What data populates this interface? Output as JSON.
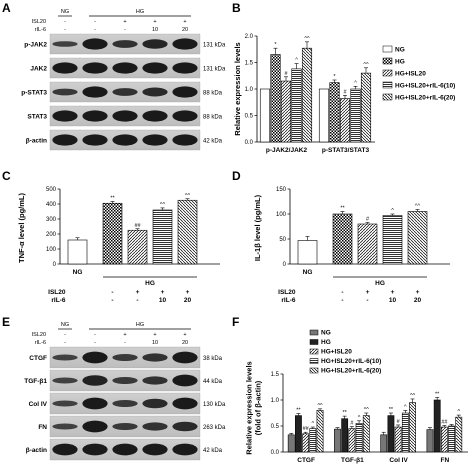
{
  "panels": {
    "A": {
      "label": "A",
      "group_ng": "NG",
      "group_hg": "HG",
      "rows": [
        {
          "name": "ISL20",
          "values": [
            "-",
            "-",
            "+",
            "+",
            "+"
          ]
        },
        {
          "name": "rIL-6",
          "values": [
            "-",
            "-",
            "-",
            "10",
            "20"
          ]
        }
      ],
      "bands": [
        {
          "protein": "p-JAK2",
          "kda": "131 kDa"
        },
        {
          "protein": "JAK2",
          "kda": "131 kDa"
        },
        {
          "protein": "p-STAT3",
          "kda": "88 kDa"
        },
        {
          "protein": "STAT3",
          "kda": "88 kDa"
        },
        {
          "protein": "β-actin",
          "kda": "42 kDa"
        }
      ]
    },
    "E": {
      "label": "E",
      "group_ng": "NG",
      "group_hg": "HG",
      "rows": [
        {
          "name": "ISL20",
          "values": [
            "-",
            "-",
            "+",
            "+",
            "+"
          ]
        },
        {
          "name": "rIL-6",
          "values": [
            "-",
            "-",
            "-",
            "10",
            "20"
          ]
        }
      ],
      "bands": [
        {
          "protein": "CTGF",
          "kda": "38 kDa"
        },
        {
          "protein": "TGF-β1",
          "kda": "44 kDa"
        },
        {
          "protein": "Col IV",
          "kda": "130 kDa"
        },
        {
          "protein": "FN",
          "kda": "263 kDa"
        },
        {
          "protein": "β-actin",
          "kda": "42 kDa"
        }
      ]
    },
    "C_D_bottom": {
      "group_ng": "NG",
      "group_hg": "HG",
      "rows": [
        {
          "name": "ISL20",
          "values": [
            "-",
            "+",
            "+",
            "+"
          ]
        },
        {
          "name": "rIL-6",
          "values": [
            "-",
            "-",
            "10",
            "20"
          ]
        }
      ]
    }
  },
  "legend_items": [
    "NG",
    "HG",
    "HG+ISL20",
    "HG+ISL20+rIL-6(10)",
    "HG+ISL20+rIL-6(20)"
  ],
  "legend_items_F": [
    "NG",
    "HG",
    "HG+ISL20",
    "HG+ISL20+rIL-6(10)",
    "HG+ISL20+rIL-6(20)"
  ],
  "chart_data": [
    {
      "panel": "B",
      "type": "bar",
      "ylabel": "Relative expression levels",
      "ylim": [
        0,
        2.0
      ],
      "yticks": [
        "0.0",
        "0.5",
        "1.0",
        "1.5",
        "2.0"
      ],
      "categories": [
        "p-JAK2/JAK2",
        "p-STAT3/STAT3"
      ],
      "series": [
        {
          "name": "NG",
          "values": [
            1.0,
            1.0
          ],
          "err": [
            0,
            0
          ]
        },
        {
          "name": "HG",
          "values": [
            1.65,
            1.12
          ],
          "err": [
            0.12,
            0.05
          ]
        },
        {
          "name": "HG+ISL20",
          "values": [
            1.15,
            0.82
          ],
          "err": [
            0.08,
            0.06
          ]
        },
        {
          "name": "HG+ISL20+rIL-6(10)",
          "values": [
            1.38,
            1.0
          ],
          "err": [
            0.1,
            0.05
          ]
        },
        {
          "name": "HG+ISL20+rIL-6(20)",
          "values": [
            1.77,
            1.3
          ],
          "err": [
            0.12,
            0.1
          ]
        }
      ],
      "annotations": [
        [
          "",
          "*",
          "#",
          "^",
          "^^"
        ],
        [
          "",
          "*",
          "#",
          "^",
          "^^"
        ]
      ]
    },
    {
      "panel": "C",
      "type": "bar",
      "ylabel": "TNF-α level (pg/mL)",
      "ylim": [
        0,
        500
      ],
      "yticks": [
        "0",
        "100",
        "200",
        "300",
        "400",
        "500"
      ],
      "categories": [
        "NG",
        "HG",
        "HG+ISL20",
        "HG+ISL20+rIL-6(10)",
        "HG+ISL20+rIL-6(20)"
      ],
      "values": [
        160,
        405,
        225,
        360,
        425
      ],
      "err": [
        15,
        12,
        10,
        14,
        10
      ],
      "annotations": [
        "",
        "**",
        "##",
        "^^",
        "^^"
      ]
    },
    {
      "panel": "D",
      "type": "bar",
      "ylabel": "IL-1β level (pg/mL)",
      "ylim": [
        0,
        150
      ],
      "yticks": [
        "0",
        "50",
        "100",
        "150"
      ],
      "categories": [
        "NG",
        "HG",
        "HG+ISL20",
        "HG+ISL20+rIL-6(10)",
        "HG+ISL20+rIL-6(20)"
      ],
      "values": [
        47,
        100,
        80,
        97,
        105
      ],
      "err": [
        8,
        5,
        3,
        3,
        4
      ],
      "annotations": [
        "",
        "**",
        "#",
        "^",
        "^^"
      ]
    },
    {
      "panel": "F",
      "type": "bar",
      "ylabel": "Relative expression levels\n(fold of β-actin)",
      "ylim": [
        0,
        1.5
      ],
      "yticks": [
        "0.0",
        "0.5",
        "1.0",
        "1.5"
      ],
      "categories": [
        "CTGF",
        "TGF-β1",
        "Col IV",
        "FN"
      ],
      "series": [
        {
          "name": "NG",
          "values": [
            0.33,
            0.44,
            0.33,
            0.43
          ],
          "err": [
            0.03,
            0.03,
            0.05,
            0.04
          ]
        },
        {
          "name": "HG",
          "values": [
            0.7,
            0.64,
            0.7,
            1.0
          ],
          "err": [
            0.04,
            0.05,
            0.05,
            0.05
          ]
        },
        {
          "name": "HG+ISL20",
          "values": [
            0.35,
            0.45,
            0.48,
            0.48
          ],
          "err": [
            0.03,
            0.04,
            0.04,
            0.03
          ]
        },
        {
          "name": "HG+ISL20+rIL-6(10)",
          "values": [
            0.45,
            0.55,
            0.75,
            0.5
          ],
          "err": [
            0.03,
            0.05,
            0.05,
            0.03
          ]
        },
        {
          "name": "HG+ISL20+rIL-6(20)",
          "values": [
            0.8,
            0.7,
            0.95,
            0.67
          ],
          "err": [
            0.03,
            0.05,
            0.07,
            0.04
          ]
        }
      ],
      "annotations": [
        [
          "",
          "**",
          "##",
          "^",
          "^^"
        ],
        [
          "",
          "**",
          "#",
          "^",
          "^^"
        ],
        [
          "",
          "**",
          "#",
          "^",
          "^^"
        ],
        [
          "",
          "**",
          "##",
          "",
          "^"
        ]
      ]
    }
  ]
}
